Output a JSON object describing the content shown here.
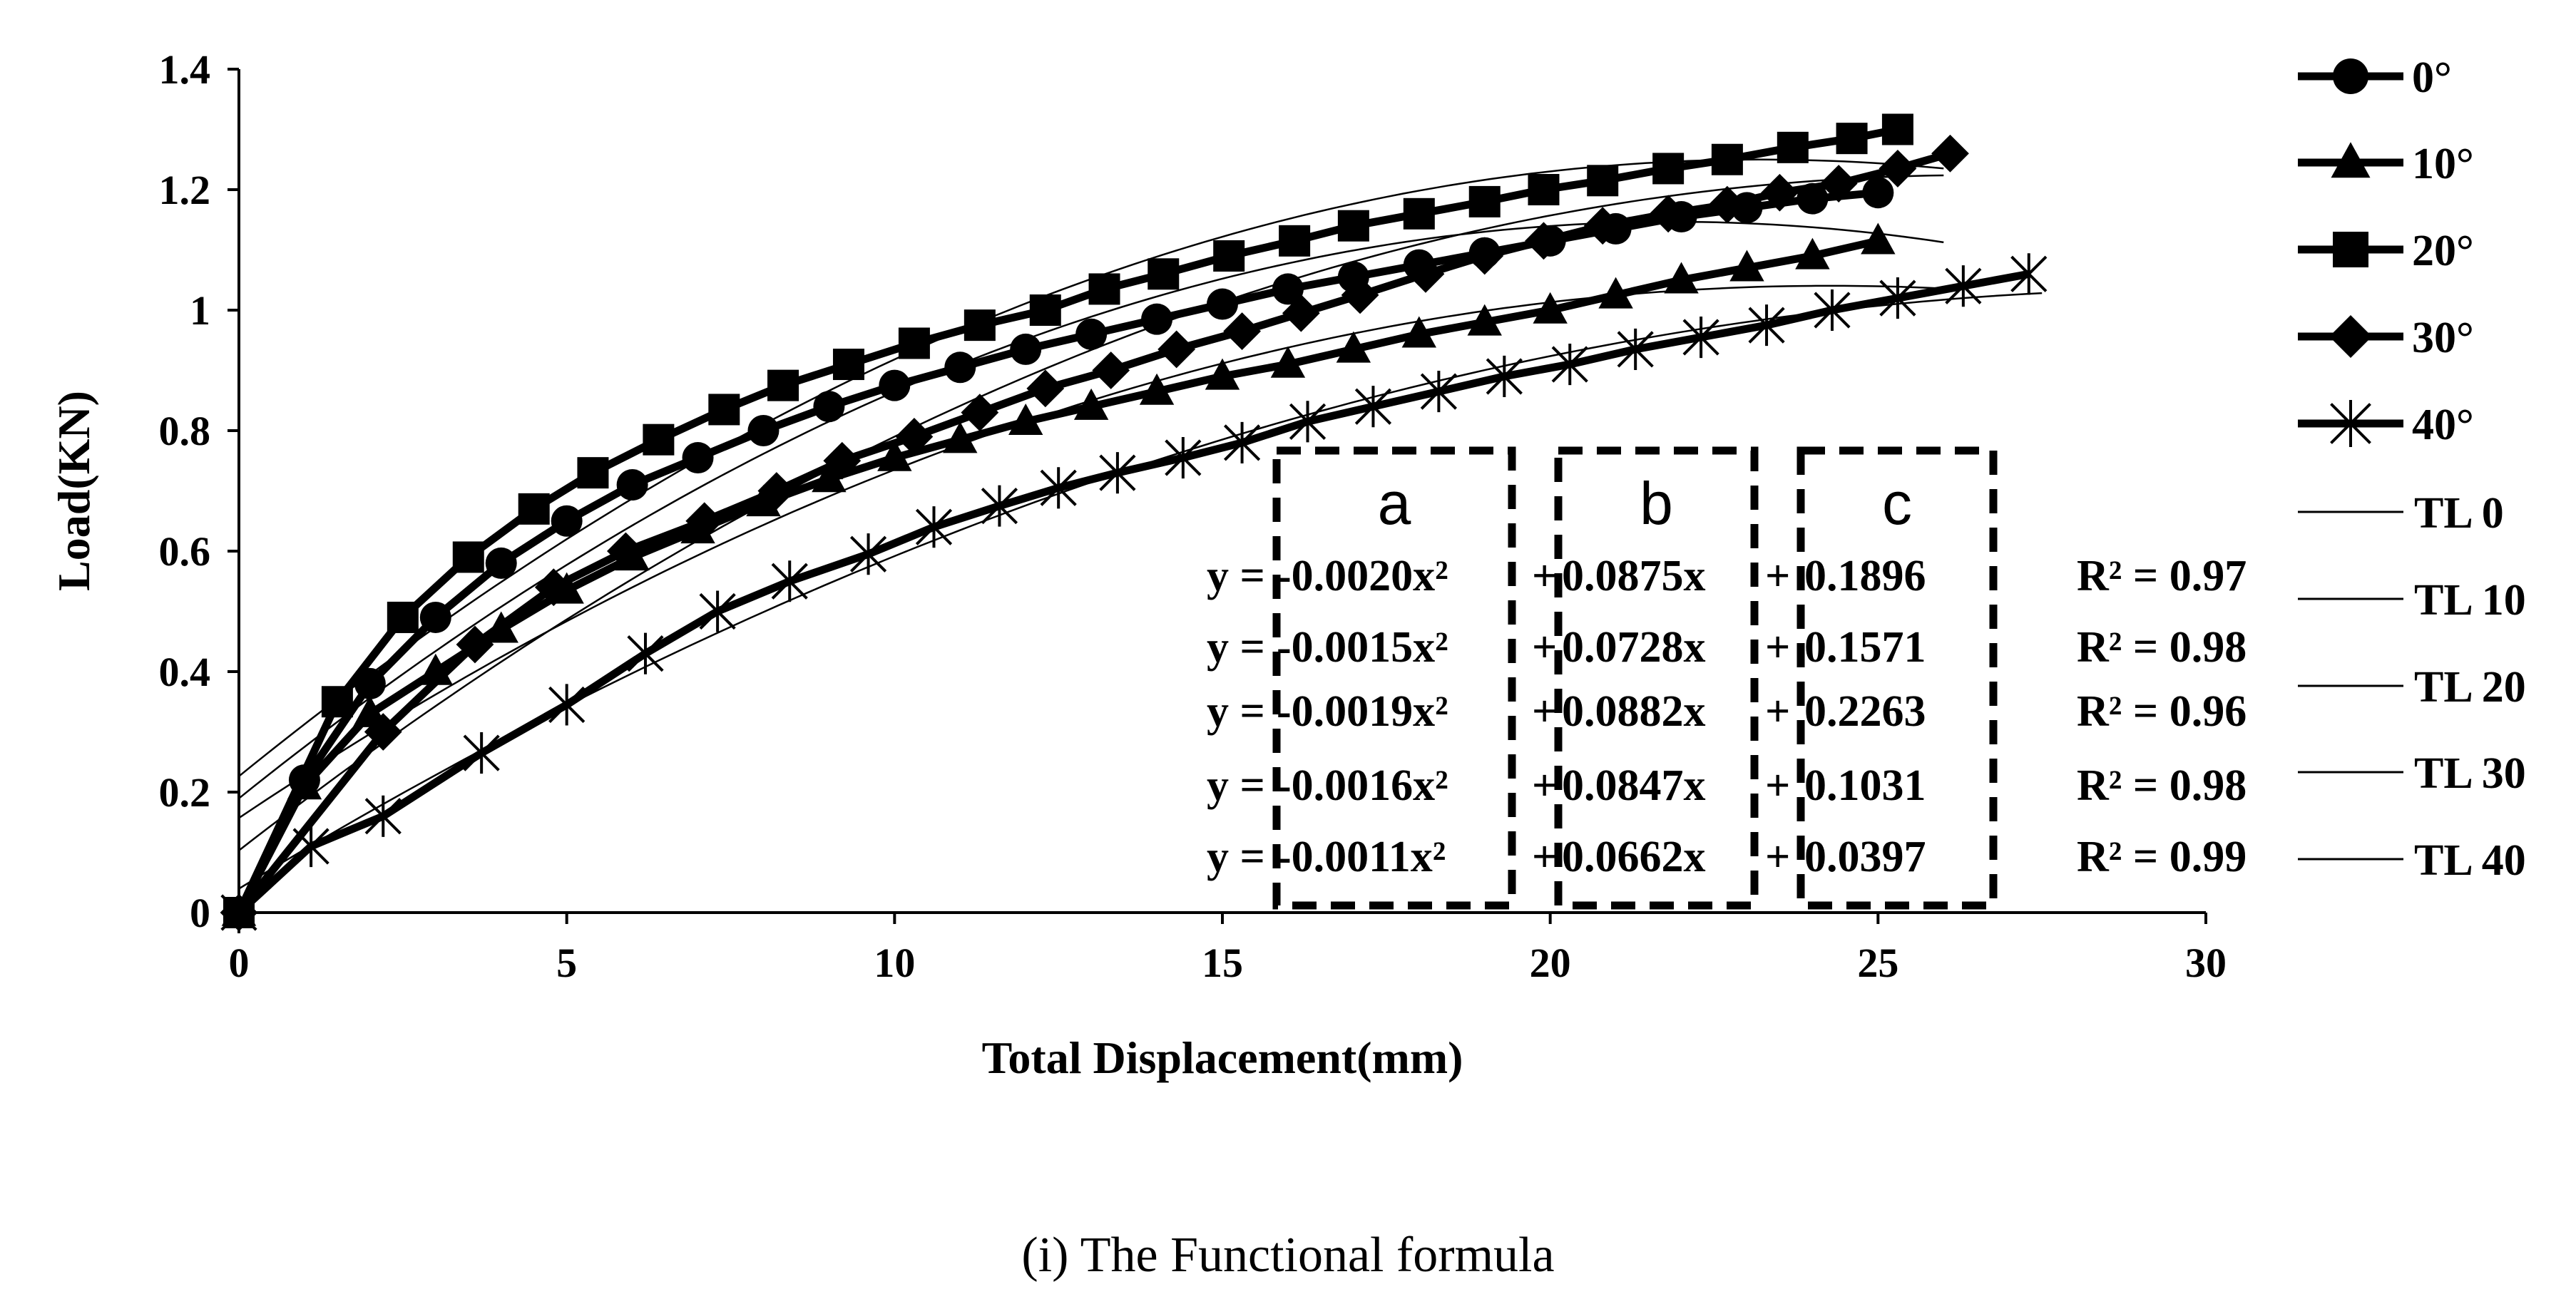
{
  "chart_data": {
    "type": "line",
    "title": "",
    "xlabel": "Total Displacement(mm)",
    "ylabel": "Load(KN)",
    "xlim": [
      0,
      30
    ],
    "ylim": [
      0,
      1.4
    ],
    "x_ticks": [
      "0",
      "5",
      "10",
      "15",
      "20",
      "25",
      "30"
    ],
    "y_ticks": [
      "0",
      "0.2",
      "0.4",
      "0.6",
      "0.8",
      "1",
      "1.2",
      "1.4"
    ],
    "grid": false,
    "legend_position": "right",
    "series": [
      {
        "name": "0°",
        "marker": "circle",
        "color": "#000000",
        "x": [
          0,
          1,
          2,
          3,
          4,
          5,
          6,
          7,
          8,
          9,
          10,
          11,
          12,
          13,
          14,
          15,
          16,
          17,
          18,
          19,
          20,
          21,
          22,
          23,
          24,
          25
        ],
        "y": [
          0,
          0.22,
          0.38,
          0.49,
          0.58,
          0.65,
          0.71,
          0.755,
          0.8,
          0.84,
          0.875,
          0.905,
          0.935,
          0.96,
          0.985,
          1.01,
          1.035,
          1.055,
          1.075,
          1.095,
          1.115,
          1.135,
          1.155,
          1.17,
          1.185,
          1.195
        ]
      },
      {
        "name": "10°",
        "marker": "triangle",
        "color": "#000000",
        "x": [
          0,
          1,
          2,
          3,
          4,
          5,
          6,
          7,
          8,
          9,
          10,
          11,
          12,
          13,
          14,
          15,
          16,
          17,
          18,
          19,
          20,
          21,
          22,
          23,
          24,
          25
        ],
        "y": [
          0,
          0.21,
          0.33,
          0.4,
          0.47,
          0.535,
          0.59,
          0.635,
          0.68,
          0.72,
          0.755,
          0.785,
          0.815,
          0.84,
          0.865,
          0.89,
          0.91,
          0.935,
          0.96,
          0.98,
          1.0,
          1.025,
          1.05,
          1.07,
          1.09,
          1.115
        ]
      },
      {
        "name": "20°",
        "marker": "square",
        "color": "#000000",
        "x": [
          0,
          1.5,
          2.5,
          3.5,
          4.5,
          5.4,
          6.4,
          7.4,
          8.3,
          9.3,
          10.3,
          11.3,
          12.3,
          13.2,
          14.1,
          15.1,
          16.1,
          17.0,
          18.0,
          19.0,
          19.9,
          20.8,
          21.8,
          22.7,
          23.7,
          24.6,
          25.3
        ],
        "y": [
          0,
          0.35,
          0.49,
          0.59,
          0.67,
          0.73,
          0.785,
          0.835,
          0.875,
          0.91,
          0.945,
          0.975,
          1.0,
          1.035,
          1.06,
          1.09,
          1.115,
          1.14,
          1.16,
          1.18,
          1.2,
          1.215,
          1.235,
          1.25,
          1.27,
          1.285,
          1.3
        ]
      },
      {
        "name": "30°",
        "marker": "diamond",
        "color": "#000000",
        "x": [
          0,
          2.2,
          3.6,
          4.8,
          5.9,
          7.1,
          8.2,
          9.2,
          10.3,
          11.3,
          12.3,
          13.3,
          14.3,
          15.3,
          16.2,
          17.1,
          18.1,
          19.0,
          19.9,
          20.8,
          21.8,
          22.7,
          23.5,
          24.4,
          25.3,
          26.1
        ],
        "y": [
          0,
          0.3,
          0.445,
          0.54,
          0.6,
          0.65,
          0.7,
          0.75,
          0.79,
          0.83,
          0.87,
          0.9,
          0.935,
          0.965,
          0.995,
          1.025,
          1.06,
          1.09,
          1.115,
          1.14,
          1.16,
          1.175,
          1.195,
          1.21,
          1.235,
          1.26
        ]
      },
      {
        "name": "40°",
        "marker": "star",
        "color": "#000000",
        "x": [
          0,
          1.1,
          2.2,
          3.7,
          5.0,
          6.2,
          7.3,
          8.4,
          9.6,
          10.6,
          11.6,
          12.5,
          13.4,
          14.4,
          15.3,
          16.3,
          17.3,
          18.3,
          19.3,
          20.3,
          21.3,
          22.3,
          23.3,
          24.3,
          25.3,
          26.3,
          27.3
        ],
        "y": [
          0,
          0.11,
          0.16,
          0.265,
          0.345,
          0.43,
          0.5,
          0.55,
          0.595,
          0.64,
          0.675,
          0.705,
          0.73,
          0.755,
          0.78,
          0.815,
          0.84,
          0.865,
          0.89,
          0.91,
          0.935,
          0.955,
          0.975,
          1.0,
          1.02,
          1.04,
          1.06
        ]
      }
    ],
    "trendlines": [
      {
        "name": "TL 0",
        "a": -0.002,
        "b": 0.0875,
        "c": 0.1896,
        "x_range": [
          0,
          26
        ]
      },
      {
        "name": "TL 10",
        "a": -0.0015,
        "b": 0.0728,
        "c": 0.1571,
        "x_range": [
          0,
          26
        ]
      },
      {
        "name": "TL 20",
        "a": -0.0019,
        "b": 0.0882,
        "c": 0.2263,
        "x_range": [
          0,
          26
        ]
      },
      {
        "name": "TL 30",
        "a": -0.0016,
        "b": 0.0847,
        "c": 0.1031,
        "x_range": [
          0,
          26
        ]
      },
      {
        "name": "TL 40",
        "a": -0.0011,
        "b": 0.0662,
        "c": 0.0397,
        "x_range": [
          0,
          27.5
        ]
      }
    ],
    "equations": [
      {
        "y": "y =",
        "a": "-0.0020x²",
        "p1": "+",
        "b": "0.0875x",
        "p2": "+",
        "c": "0.1896",
        "r2": "R² = 0.97"
      },
      {
        "y": "y =",
        "a": "-0.0015x²",
        "p1": "+",
        "b": "0.0728x",
        "p2": "+",
        "c": "0.1571",
        "r2": "R² = 0.98"
      },
      {
        "y": "y =",
        "a": "-0.0019x²",
        "p1": "+",
        "b": "0.0882x",
        "p2": "+",
        "c": "0.2263",
        "r2": "R² = 0.96"
      },
      {
        "y": "y =",
        "a": "-0.0016x²",
        "p1": "+",
        "b": "0.0847x",
        "p2": "+",
        "c": "0.1031",
        "r2": "R² = 0.98"
      },
      {
        "y": "y =",
        "a": "-0.0011x²",
        "p1": "+",
        "b": "0.0662x",
        "p2": "+",
        "c": "0.0397",
        "r2": "R² = 0.99"
      }
    ],
    "coef_boxes": [
      "a",
      "b",
      "c"
    ]
  },
  "caption": {
    "label": "(i)",
    "text": "The Functional formula"
  }
}
